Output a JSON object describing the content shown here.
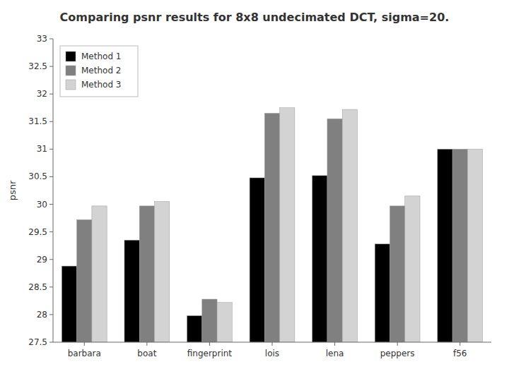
{
  "chart_data": {
    "type": "bar",
    "title": "Comparing psnr results for 8x8 undecimated DCT, sigma=20.",
    "ylabel": "psnr",
    "categories": [
      "barbara",
      "boat",
      "fingerprint",
      "lois",
      "lena",
      "peppers",
      "f56"
    ],
    "series": [
      {
        "name": "Method 1",
        "color": "#000000",
        "values": [
          28.88,
          29.35,
          27.98,
          30.48,
          30.52,
          29.28,
          31.0
        ]
      },
      {
        "name": "Method 2",
        "color": "#808080",
        "values": [
          29.72,
          29.97,
          28.28,
          31.65,
          31.55,
          29.97,
          31.0
        ]
      },
      {
        "name": "Method 3",
        "color": "#d3d3d3",
        "values": [
          29.97,
          30.05,
          28.22,
          31.75,
          31.72,
          30.15,
          31.0
        ]
      }
    ],
    "ylim": [
      27.5,
      33
    ],
    "yticks": [
      27.5,
      28,
      28.5,
      29,
      29.5,
      30,
      30.5,
      31,
      31.5,
      32,
      32.5,
      33
    ],
    "grid": false,
    "legend": "upper left"
  }
}
